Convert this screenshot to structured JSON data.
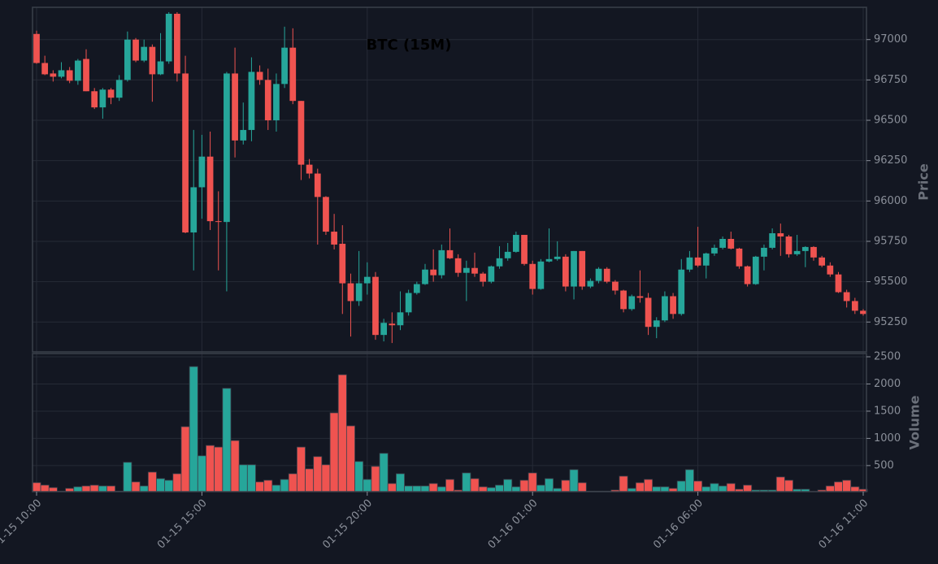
{
  "chart_data": [
    {
      "type": "candlestick",
      "title": "BTC (15M)",
      "ylabel": "Price",
      "up_color": "#26a69a",
      "down_color": "#ef5350",
      "grid": true,
      "ylim": [
        95065,
        97200
      ],
      "yticks": [
        95250,
        95500,
        95750,
        96000,
        96250,
        96500,
        96750,
        97000
      ],
      "categories": [
        "01-15 10:00",
        null,
        null,
        null,
        null,
        null,
        null,
        null,
        null,
        null,
        null,
        null,
        null,
        null,
        null,
        null,
        null,
        null,
        null,
        null,
        "01-15 15:00",
        null,
        null,
        null,
        null,
        null,
        null,
        null,
        null,
        null,
        null,
        null,
        null,
        null,
        null,
        null,
        null,
        null,
        null,
        null,
        "01-15 20:00",
        null,
        null,
        null,
        null,
        null,
        null,
        null,
        null,
        null,
        null,
        null,
        null,
        null,
        null,
        null,
        null,
        null,
        null,
        null,
        "01-16 01:00",
        null,
        null,
        null,
        null,
        null,
        null,
        null,
        null,
        null,
        null,
        null,
        null,
        null,
        null,
        null,
        null,
        null,
        null,
        null,
        "01-16 06:00",
        null,
        null,
        null,
        null,
        null,
        null,
        null,
        null,
        null,
        null,
        null,
        null,
        null,
        null,
        null,
        null,
        null,
        null,
        null,
        "01-16 11:00"
      ],
      "open": [
        97035,
        96855,
        96790,
        96770,
        96810,
        96745,
        96880,
        96680,
        96580,
        96690,
        96640,
        96750,
        97000,
        96870,
        96955,
        96785,
        96865,
        97160,
        96790,
        95805,
        96085,
        96275,
        95875,
        95870,
        96790,
        96375,
        96440,
        96800,
        96750,
        96500,
        96725,
        96950,
        96620,
        96225,
        96170,
        96025,
        95810,
        95735,
        95490,
        95380,
        95490,
        95530,
        95170,
        95240,
        95230,
        95310,
        95430,
        95485,
        95575,
        95540,
        95695,
        95645,
        95555,
        95585,
        95550,
        95500,
        95595,
        95645,
        95685,
        95790,
        95610,
        95455,
        95625,
        95640,
        95655,
        95470,
        95690,
        95470,
        95505,
        95580,
        95500,
        95445,
        95330,
        95410,
        95400,
        95220,
        95260,
        95410,
        95300,
        95575,
        95650,
        95600,
        95675,
        95710,
        95765,
        95705,
        95595,
        95485,
        95655,
        95710,
        95800,
        95780,
        95670,
        95690,
        95715,
        95650,
        95600,
        95545,
        95435,
        95380,
        95320
      ],
      "high": [
        97055,
        96900,
        96810,
        96860,
        96830,
        96880,
        96940,
        96700,
        96700,
        96700,
        96780,
        97050,
        97010,
        97000,
        96970,
        97040,
        97170,
        97170,
        96900,
        96440,
        96410,
        96430,
        96060,
        96800,
        96950,
        96610,
        96890,
        96840,
        96820,
        96790,
        97080,
        97070,
        96620,
        96260,
        96200,
        96030,
        95920,
        95850,
        95550,
        95690,
        95620,
        95560,
        95270,
        95310,
        95440,
        95450,
        95500,
        95610,
        95700,
        95730,
        95830,
        95670,
        95630,
        95680,
        95560,
        95600,
        95720,
        95740,
        95810,
        95790,
        95630,
        95640,
        95830,
        95750,
        95670,
        95690,
        95690,
        95520,
        95590,
        95590,
        95510,
        95450,
        95420,
        95570,
        95430,
        95280,
        95440,
        95430,
        95640,
        95690,
        95840,
        95680,
        95730,
        95780,
        95810,
        95710,
        95600,
        95660,
        95730,
        95830,
        95860,
        95790,
        95790,
        95720,
        95720,
        95660,
        95620,
        95560,
        95450,
        95400,
        95330
      ],
      "low": [
        96850,
        96780,
        96740,
        96760,
        96730,
        96720,
        96680,
        96570,
        96510,
        96600,
        96620,
        96740,
        96860,
        96860,
        96615,
        96780,
        96850,
        96740,
        95800,
        95570,
        95890,
        95820,
        95570,
        95440,
        96270,
        96350,
        96370,
        96720,
        96440,
        96430,
        96700,
        96600,
        96130,
        96140,
        95730,
        95790,
        95700,
        95300,
        95160,
        95350,
        95420,
        95140,
        95130,
        95120,
        95200,
        95290,
        95420,
        95480,
        95500,
        95520,
        95640,
        95530,
        95380,
        95530,
        95470,
        95490,
        95580,
        95630,
        95680,
        95600,
        95420,
        95450,
        95620,
        95630,
        95440,
        95390,
        95450,
        95460,
        95490,
        95490,
        95420,
        95310,
        95320,
        95370,
        95170,
        95150,
        95250,
        95270,
        95290,
        95560,
        95590,
        95520,
        95660,
        95700,
        95700,
        95580,
        95470,
        95480,
        95570,
        95700,
        95660,
        95650,
        95660,
        95590,
        95630,
        95590,
        95530,
        95430,
        95340,
        95300,
        95290
      ],
      "close": [
        96855,
        96785,
        96770,
        96810,
        96745,
        96870,
        96680,
        96580,
        96690,
        96640,
        96750,
        97000,
        96870,
        96955,
        96785,
        96865,
        97160,
        96790,
        95805,
        96085,
        96275,
        95875,
        95870,
        96790,
        96375,
        96440,
        96800,
        96750,
        96500,
        96725,
        96950,
        96620,
        96225,
        96170,
        96025,
        95810,
        95730,
        95490,
        95380,
        95490,
        95530,
        95170,
        95245,
        95230,
        95310,
        95430,
        95485,
        95575,
        95540,
        95695,
        95645,
        95555,
        95585,
        95550,
        95500,
        95595,
        95645,
        95685,
        95790,
        95610,
        95455,
        95625,
        95640,
        95655,
        95470,
        95690,
        95470,
        95505,
        95580,
        95500,
        95445,
        95330,
        95410,
        95400,
        95220,
        95260,
        95410,
        95300,
        95575,
        95650,
        95600,
        95675,
        95710,
        95765,
        95705,
        95595,
        95485,
        95655,
        95710,
        95800,
        95780,
        95670,
        95690,
        95715,
        95650,
        95600,
        95545,
        95435,
        95380,
        95320,
        95300
      ]
    },
    {
      "type": "bar",
      "ylabel": "Volume",
      "grid": true,
      "ylim": [
        20,
        2560
      ],
      "yticks": [
        500,
        1000,
        1500,
        2000,
        2500
      ],
      "values": [
        186,
        141,
        95,
        30,
        80,
        110,
        125,
        140,
        125,
        125,
        30,
        560,
        200,
        125,
        380,
        260,
        230,
        350,
        1215,
        2320,
        680,
        870,
        840,
        1920,
        960,
        515,
        515,
        200,
        230,
        140,
        245,
        350,
        840,
        440,
        665,
        515,
        1470,
        2170,
        1230,
        575,
        245,
        485,
        725,
        170,
        350,
        125,
        125,
        125,
        170,
        110,
        245,
        50,
        365,
        260,
        110,
        95,
        140,
        245,
        110,
        230,
        365,
        140,
        260,
        80,
        230,
        425,
        185,
        30,
        30,
        30,
        50,
        305,
        80,
        185,
        245,
        110,
        110,
        80,
        215,
        425,
        215,
        110,
        170,
        125,
        170,
        65,
        140,
        50,
        50,
        50,
        290,
        230,
        65,
        65,
        25,
        50,
        125,
        200,
        230,
        110,
        65
      ]
    }
  ]
}
